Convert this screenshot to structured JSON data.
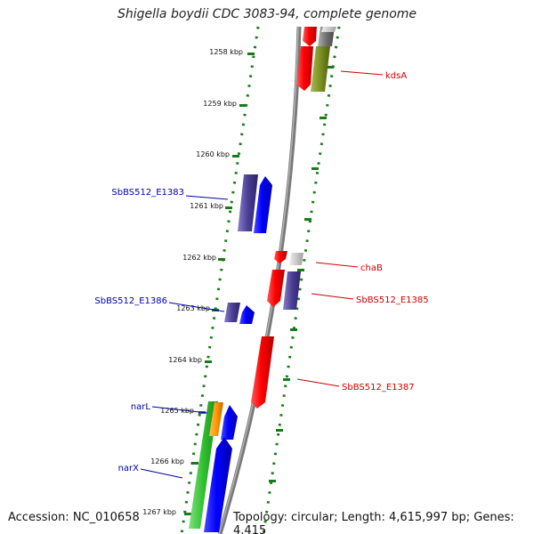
{
  "title": "Shigella boydii CDC 3083-94, complete genome",
  "footer": {
    "accession": "Accession: NC_010658",
    "summary": "Topology: circular; Length: 4,615,997 bp; Genes: 4,415"
  },
  "colors": {
    "forward_cds": "#ff0000",
    "reverse_cds": "#0000ff",
    "backbone": "#808080",
    "tick": "#1a7a1a",
    "label_forward": "#cc0000",
    "label_reverse": "#0000aa"
  },
  "kbp_ticks": [
    "1258 kbp",
    "1259 kbp",
    "1260 kbp",
    "1261 kbp",
    "1262 kbp",
    "1263 kbp",
    "1264 kbp",
    "1265 kbp",
    "1266 kbp",
    "1267 kbp"
  ],
  "gene_labels": [
    {
      "text": "kdsA",
      "strand": "forward"
    },
    {
      "text": "chaB",
      "strand": "forward"
    },
    {
      "text": "SbBS512_E1385",
      "strand": "forward"
    },
    {
      "text": "SbBS512_E1387",
      "strand": "forward"
    },
    {
      "text": "SbBS512_E1383",
      "strand": "reverse"
    },
    {
      "text": "SbBS512_E1386",
      "strand": "reverse"
    },
    {
      "text": "narL",
      "strand": "reverse"
    },
    {
      "text": "narX",
      "strand": "reverse"
    }
  ]
}
